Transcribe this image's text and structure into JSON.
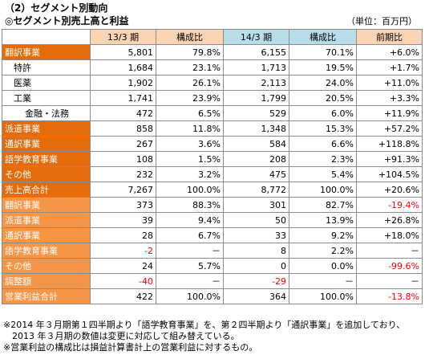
{
  "heading": "（2）セグメント別動向",
  "subheading": "◎セグメント別売上高と利益",
  "unit": "（単位：百万円）",
  "columns": [
    "",
    "13/3 期",
    "構成比",
    "14/3 期",
    "構成比",
    "前期比"
  ],
  "rows": [
    {
      "label": "翻訳事業",
      "style": "dark",
      "cells": [
        "5,801",
        "79.8%",
        "6,155",
        "70.1%",
        "+6.0%"
      ],
      "neg": []
    },
    {
      "label": "特許",
      "style": "sub",
      "cells": [
        "1,684",
        "23.1%",
        "1,713",
        "19.5%",
        "+1.7%"
      ],
      "neg": []
    },
    {
      "label": "医薬",
      "style": "sub",
      "cells": [
        "1,902",
        "26.1%",
        "2,113",
        "24.0%",
        "+11.0%"
      ],
      "neg": []
    },
    {
      "label": "工業",
      "style": "sub",
      "cells": [
        "1,741",
        "23.9%",
        "1,799",
        "20.5%",
        "+3.3%"
      ],
      "neg": []
    },
    {
      "label": "金融・法務",
      "style": "sub2",
      "cells": [
        "472",
        "6.5%",
        "529",
        "6.0%",
        "+11.9%"
      ],
      "neg": []
    },
    {
      "label": "派遣事業",
      "style": "dark",
      "cells": [
        "858",
        "11.8%",
        "1,348",
        "15.3%",
        "+57.2%"
      ],
      "neg": []
    },
    {
      "label": "通訳事業",
      "style": "dark",
      "cells": [
        "267",
        "3.6%",
        "584",
        "6.6%",
        "+118.8%"
      ],
      "neg": []
    },
    {
      "label": "語学教育事業",
      "style": "dark",
      "cells": [
        "108",
        "1.5%",
        "208",
        "2.3%",
        "+91.3%"
      ],
      "neg": []
    },
    {
      "label": "その他",
      "style": "dark",
      "cells": [
        "232",
        "3.2%",
        "475",
        "5.4%",
        "+104.5%"
      ],
      "neg": []
    },
    {
      "label": "売上高合計",
      "style": "dark",
      "cells": [
        "7,267",
        "100.0%",
        "8,772",
        "100.0%",
        "+20.6%"
      ],
      "neg": []
    },
    {
      "label": "翻訳事業",
      "style": "light",
      "cells": [
        "373",
        "88.3%",
        "301",
        "82.7%",
        "-19.4%"
      ],
      "neg": [
        4
      ]
    },
    {
      "label": "派遣事業",
      "style": "light",
      "cells": [
        "39",
        "9.4%",
        "50",
        "13.9%",
        "+26.8%"
      ],
      "neg": []
    },
    {
      "label": "通訳事業",
      "style": "light",
      "cells": [
        "28",
        "6.7%",
        "33",
        "9.2%",
        "+18.0%"
      ],
      "neg": []
    },
    {
      "label": "語学教育事業",
      "style": "light",
      "cells": [
        "-2",
        "－",
        "8",
        "2.2%",
        "－"
      ],
      "neg": [
        0
      ]
    },
    {
      "label": "その他",
      "style": "light",
      "cells": [
        "24",
        "5.7%",
        "0",
        "0.0%",
        "-99.6%"
      ],
      "neg": [
        4
      ]
    },
    {
      "label": "調整額",
      "style": "light",
      "cells": [
        "-40",
        "－",
        "-29",
        "－",
        "－"
      ],
      "neg": [
        0,
        2
      ]
    },
    {
      "label": "営業利益合計",
      "style": "light",
      "cells": [
        "422",
        "100.0%",
        "364",
        "100.0%",
        "-13.8%"
      ],
      "neg": [
        4
      ]
    }
  ],
  "notes": [
    "※2014 年３月期第１四半期より「語学教育事業」を、第２四半期より「通訳事業」を追加しており、",
    "　2013 年３月期の数値は変更に対応して組み替えている。",
    "※営業利益の構成比は損益計算書計上の営業利益に対するもの。"
  ]
}
